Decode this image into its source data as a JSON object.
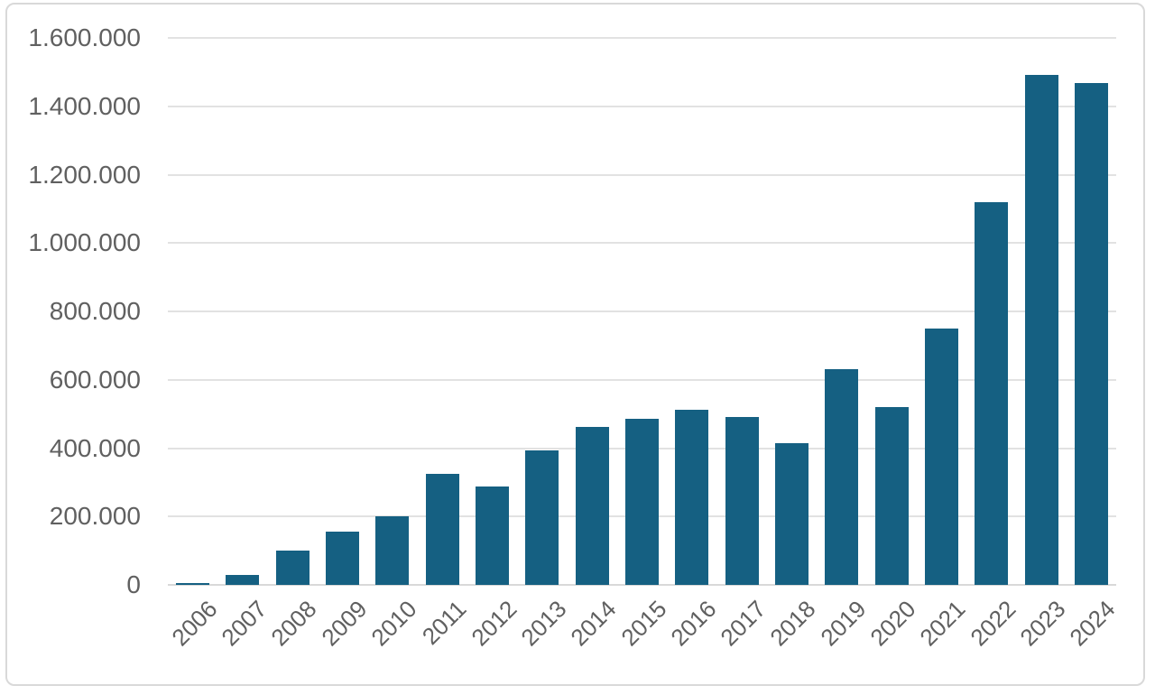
{
  "chart_data": {
    "type": "bar",
    "title": "",
    "xlabel": "",
    "ylabel": "",
    "categories": [
      "2006",
      "2007",
      "2008",
      "2009",
      "2010",
      "2011",
      "2012",
      "2013",
      "2014",
      "2015",
      "2016",
      "2017",
      "2018",
      "2019",
      "2020",
      "2021",
      "2022",
      "2023",
      "2024"
    ],
    "values": [
      5000,
      30000,
      100000,
      157000,
      200000,
      324000,
      289000,
      394000,
      463000,
      487000,
      513000,
      492000,
      414000,
      630000,
      519000,
      749000,
      1119000,
      1492000,
      1467000
    ],
    "ylim": [
      0,
      1600000
    ],
    "ytick_step": 200000,
    "ytick_labels": [
      "0",
      "200.000",
      "400.000",
      "600.000",
      "800.000",
      "1.000.000",
      "1.200.000",
      "1.400.000",
      "1.600.000"
    ],
    "grid": true,
    "legend": false,
    "x_label_rotation_deg": -45,
    "colors": {
      "bar": "#156082",
      "gridline": "#e2e2e2",
      "zero_axis": "#d9d9d9",
      "tick_text": "#606060",
      "frame_border": "#d9d9d9",
      "background": "#ffffff"
    }
  }
}
